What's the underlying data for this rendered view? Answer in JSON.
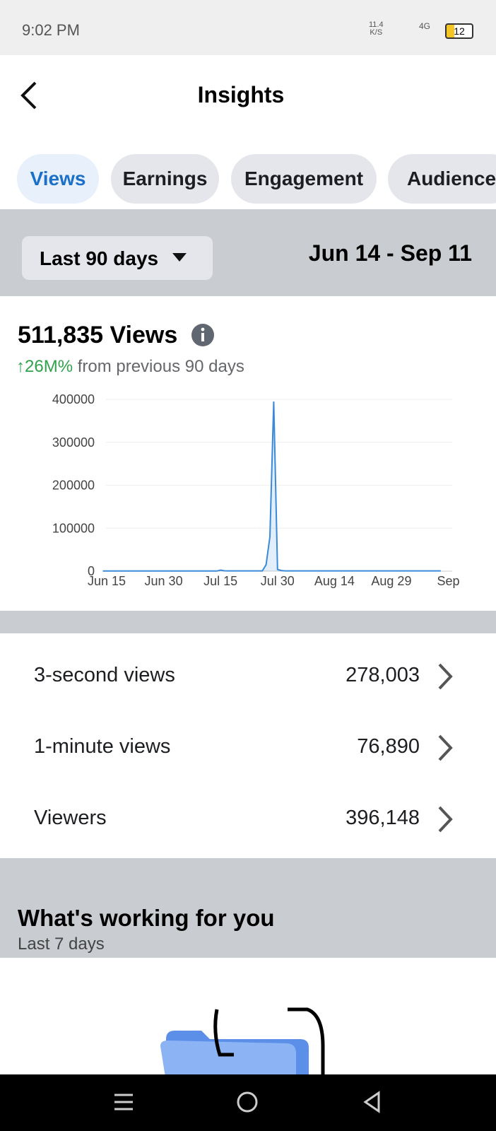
{
  "status_bar": {
    "time": "9:02 PM",
    "speed": "11.4",
    "speed_unit": "K/S",
    "network": "4G",
    "battery": "12"
  },
  "header": {
    "title": "Insights"
  },
  "tabs": [
    "Views",
    "Earnings",
    "Engagement",
    "Audience"
  ],
  "period": {
    "selector": "Last 90 days",
    "range": "Jun 14 - Sep 11"
  },
  "summary": {
    "total": "511,835 Views",
    "change": "↑26M%",
    "change_note": "from previous 90 days"
  },
  "chart_data": {
    "type": "line",
    "color": "#3b8ad9",
    "grid": true,
    "x": [
      "Jun 14",
      "Jun 15",
      "Jun 16",
      "Jun 17",
      "Jun 18",
      "Jun 19",
      "Jun 20",
      "Jun 21",
      "Jun 22",
      "Jun 23",
      "Jun 24",
      "Jun 25",
      "Jun 26",
      "Jun 27",
      "Jun 28",
      "Jun 29",
      "Jun 30",
      "Jul 1",
      "Jul 2",
      "Jul 3",
      "Jul 4",
      "Jul 5",
      "Jul 6",
      "Jul 7",
      "Jul 8",
      "Jul 9",
      "Jul 10",
      "Jul 11",
      "Jul 12",
      "Jul 13",
      "Jul 14",
      "Jul 15",
      "Jul 16",
      "Jul 17",
      "Jul 18",
      "Jul 19",
      "Jul 20",
      "Jul 21",
      "Jul 22",
      "Jul 23",
      "Jul 24",
      "Jul 25",
      "Jul 26",
      "Jul 27",
      "Jul 28",
      "Jul 29",
      "Jul 30",
      "Jul 31",
      "Aug 1",
      "Aug 2",
      "Aug 3",
      "Aug 4",
      "Aug 5",
      "Aug 6",
      "Aug 7",
      "Aug 8",
      "Aug 9",
      "Aug 10",
      "Aug 11",
      "Aug 12",
      "Aug 13",
      "Aug 14",
      "Aug 15",
      "Aug 16",
      "Aug 17",
      "Aug 18",
      "Aug 19",
      "Aug 20",
      "Aug 21",
      "Aug 22",
      "Aug 23",
      "Aug 24",
      "Aug 25",
      "Aug 26",
      "Aug 27",
      "Aug 28",
      "Aug 29",
      "Aug 30",
      "Aug 31",
      "Sep 1",
      "Sep 2",
      "Sep 3",
      "Sep 4",
      "Sep 5",
      "Sep 6",
      "Sep 7",
      "Sep 8",
      "Sep 9",
      "Sep 10",
      "Sep 11"
    ],
    "values": [
      300,
      300,
      300,
      300,
      300,
      300,
      300,
      300,
      300,
      300,
      300,
      300,
      300,
      300,
      300,
      300,
      300,
      300,
      300,
      300,
      300,
      300,
      300,
      300,
      300,
      300,
      300,
      300,
      300,
      300,
      300,
      2500,
      800,
      600,
      600,
      600,
      600,
      600,
      600,
      600,
      600,
      600,
      600,
      15000,
      80000,
      395000,
      4000,
      1500,
      700,
      700,
      700,
      700,
      700,
      700,
      700,
      700,
      700,
      700,
      700,
      700,
      700,
      700,
      700,
      700,
      700,
      700,
      700,
      700,
      700,
      700,
      700,
      700,
      700,
      700,
      700,
      700,
      700,
      700,
      700,
      700,
      700,
      700,
      700,
      700,
      700,
      700,
      700,
      700,
      700,
      700
    ],
    "xtick_labels": [
      "Jun 15",
      "Jun 30",
      "Jul 15",
      "Jul 30",
      "Aug 14",
      "Aug 29",
      "Sep"
    ],
    "ylim": [
      0,
      400000
    ],
    "yticks": [
      0,
      100000,
      200000,
      300000,
      400000
    ]
  },
  "metrics": [
    {
      "label": "3-second views",
      "value": "278,003"
    },
    {
      "label": "1-minute views",
      "value": "76,890"
    },
    {
      "label": "Viewers",
      "value": "396,148"
    }
  ],
  "section": {
    "title": "What's working for you",
    "subtitle": "Last 7 days"
  }
}
